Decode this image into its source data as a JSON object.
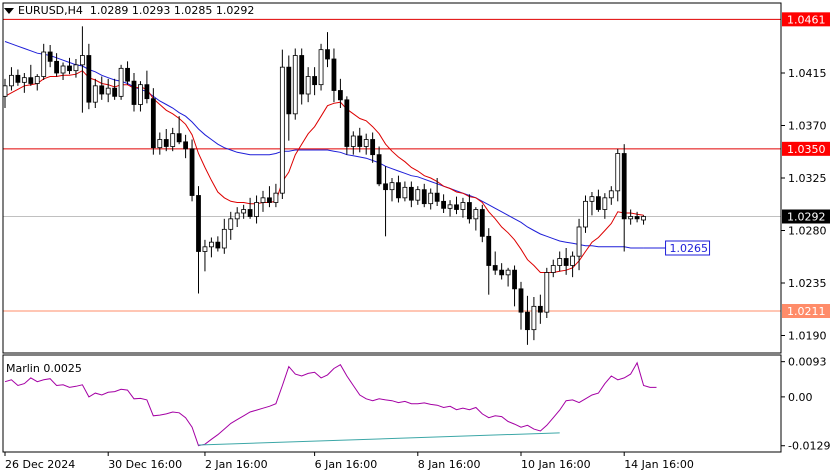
{
  "header": {
    "menu_icon": "triangle-down-icon",
    "symbol_timeframe": "EURUSD,H4",
    "open": "1.0289",
    "high": "1.0293",
    "low": "1.0285",
    "close": "1.0292"
  },
  "indicator": {
    "name": "Marlin",
    "value": "0.0025"
  },
  "colors": {
    "bull": "#ffffff",
    "bear": "#000000",
    "wick": "#000000",
    "ma_fast": "#dd0000",
    "ma_slow": "#1e1ed8",
    "level_line": "#e00000",
    "level_label_bg": "#ff0000",
    "support_line": "#ff8c69",
    "support_label_bg": "#ff8c69",
    "marlin": "#a400a4",
    "marlin_trend": "#3ca7a7",
    "grid": "#c8c8c8",
    "axis": "#000000"
  },
  "chart_data": {
    "type": "candlestick",
    "symbol": "EURUSD",
    "timeframe": "H4",
    "price_axis_ticks": [
      "1.0415",
      "1.0370",
      "1.0325",
      "1.0280",
      "1.0235",
      "1.0190"
    ],
    "time_axis_ticks": [
      "26 Dec 2024",
      "30 Dec 16:00",
      "2 Jan 16:00",
      "6 Jan 16:00",
      "8 Jan 16:00",
      "10 Jan 16:00",
      "14 Jan 16:00"
    ],
    "levels": [
      {
        "price": 1.0461,
        "label": "1.0461",
        "style": "resistance"
      },
      {
        "price": 1.035,
        "label": "1.0350",
        "style": "resistance"
      },
      {
        "price": 1.0211,
        "label": "1.0211",
        "style": "support"
      }
    ],
    "current_price": {
      "price": 1.0292,
      "label": "1.0292"
    },
    "slow_ma_marker": {
      "price": 1.0265,
      "label": "1.0265"
    },
    "candles": [
      [
        1.0395,
        1.041,
        1.0385,
        1.0404
      ],
      [
        1.0404,
        1.042,
        1.04,
        1.0413
      ],
      [
        1.0413,
        1.0418,
        1.0404,
        1.0407
      ],
      [
        1.0407,
        1.0415,
        1.0398,
        1.0411
      ],
      [
        1.0411,
        1.0422,
        1.0404,
        1.0406
      ],
      [
        1.0406,
        1.0414,
        1.04,
        1.0412
      ],
      [
        1.0412,
        1.044,
        1.0409,
        1.0433
      ],
      [
        1.0433,
        1.0439,
        1.042,
        1.0425
      ],
      [
        1.0425,
        1.0432,
        1.0412,
        1.0415
      ],
      [
        1.0415,
        1.0424,
        1.0409,
        1.0421
      ],
      [
        1.0421,
        1.0428,
        1.0414,
        1.0417
      ],
      [
        1.0417,
        1.0427,
        1.0411,
        1.0422
      ],
      [
        1.0422,
        1.0455,
        1.0381,
        1.043
      ],
      [
        1.043,
        1.044,
        1.0384,
        1.039
      ],
      [
        1.039,
        1.041,
        1.0385,
        1.0404
      ],
      [
        1.0404,
        1.0412,
        1.0392,
        1.0397
      ],
      [
        1.0397,
        1.041,
        1.039,
        1.0402
      ],
      [
        1.0402,
        1.041,
        1.0392,
        1.0395
      ],
      [
        1.0395,
        1.0422,
        1.0392,
        1.0419
      ],
      [
        1.0419,
        1.0425,
        1.0405,
        1.0408
      ],
      [
        1.0408,
        1.0415,
        1.0382,
        1.0388
      ],
      [
        1.0388,
        1.0408,
        1.0382,
        1.0405
      ],
      [
        1.0405,
        1.0417,
        1.0389,
        1.0393
      ],
      [
        1.0393,
        1.0402,
        1.0345,
        1.0351
      ],
      [
        1.0351,
        1.0364,
        1.0345,
        1.0358
      ],
      [
        1.0358,
        1.0367,
        1.0348,
        1.0352
      ],
      [
        1.0352,
        1.0368,
        1.0348,
        1.0363
      ],
      [
        1.0363,
        1.0378,
        1.0354,
        1.0356
      ],
      [
        1.0356,
        1.0362,
        1.0342,
        1.035
      ],
      [
        1.035,
        1.0358,
        1.0305,
        1.031
      ],
      [
        1.031,
        1.0318,
        1.0226,
        1.0262
      ],
      [
        1.0262,
        1.0272,
        1.0245,
        1.0266
      ],
      [
        1.0266,
        1.0274,
        1.0257,
        1.027
      ],
      [
        1.027,
        1.0275,
        1.0262,
        1.0265
      ],
      [
        1.0265,
        1.029,
        1.026,
        1.0281
      ],
      [
        1.0281,
        1.0296,
        1.0272,
        1.029
      ],
      [
        1.029,
        1.03,
        1.0283,
        1.0295
      ],
      [
        1.0295,
        1.0302,
        1.029,
        1.0298
      ],
      [
        1.0298,
        1.0308,
        1.029,
        1.0292
      ],
      [
        1.0292,
        1.031,
        1.0286,
        1.0304
      ],
      [
        1.0304,
        1.0314,
        1.0296,
        1.0308
      ],
      [
        1.0308,
        1.0318,
        1.03,
        1.0304
      ],
      [
        1.0304,
        1.032,
        1.03,
        1.0312
      ],
      [
        1.0312,
        1.0435,
        1.0307,
        1.042
      ],
      [
        1.042,
        1.043,
        1.0357,
        1.038
      ],
      [
        1.038,
        1.0436,
        1.0375,
        1.043
      ],
      [
        1.043,
        1.0436,
        1.0388,
        1.0397
      ],
      [
        1.0397,
        1.042,
        1.039,
        1.0412
      ],
      [
        1.0412,
        1.042,
        1.0396,
        1.0405
      ],
      [
        1.0405,
        1.044,
        1.04,
        1.0435
      ],
      [
        1.0435,
        1.045,
        1.042,
        1.0427
      ],
      [
        1.0427,
        1.0436,
        1.039,
        1.04
      ],
      [
        1.04,
        1.041,
        1.0385,
        1.0392
      ],
      [
        1.0392,
        1.0395,
        1.0345,
        1.0352
      ],
      [
        1.0352,
        1.0365,
        1.0345,
        1.0361
      ],
      [
        1.0361,
        1.0368,
        1.0347,
        1.0352
      ],
      [
        1.0352,
        1.0363,
        1.0345,
        1.0358
      ],
      [
        1.0358,
        1.0364,
        1.0338,
        1.0345
      ],
      [
        1.0345,
        1.0352,
        1.0318,
        1.032
      ],
      [
        1.032,
        1.0335,
        1.0275,
        1.0315
      ],
      [
        1.0315,
        1.0325,
        1.0305,
        1.0321
      ],
      [
        1.0321,
        1.0327,
        1.0304,
        1.0308
      ],
      [
        1.0308,
        1.0322,
        1.0305,
        1.0317
      ],
      [
        1.0317,
        1.0322,
        1.03,
        1.0306
      ],
      [
        1.0306,
        1.0318,
        1.0302,
        1.0315
      ],
      [
        1.0315,
        1.032,
        1.03,
        1.0303
      ],
      [
        1.0303,
        1.0316,
        1.0298,
        1.0312
      ],
      [
        1.0312,
        1.0325,
        1.0301,
        1.0305
      ],
      [
        1.0305,
        1.0311,
        1.0295,
        1.0299
      ],
      [
        1.0299,
        1.0306,
        1.0292,
        1.0302
      ],
      [
        1.0302,
        1.0309,
        1.0294,
        1.0298
      ],
      [
        1.0298,
        1.0308,
        1.0291,
        1.0304
      ],
      [
        1.0304,
        1.0311,
        1.0286,
        1.029
      ],
      [
        1.029,
        1.03,
        1.028,
        1.0298
      ],
      [
        1.0298,
        1.0302,
        1.027,
        1.0275
      ],
      [
        1.0275,
        1.0282,
        1.0225,
        1.025
      ],
      [
        1.025,
        1.0262,
        1.0242,
        1.0246
      ],
      [
        1.0246,
        1.0252,
        1.0238,
        1.0242
      ],
      [
        1.0242,
        1.0248,
        1.0232,
        1.0246
      ],
      [
        1.0246,
        1.025,
        1.0215,
        1.023
      ],
      [
        1.023,
        1.0236,
        1.0195,
        1.021
      ],
      [
        1.021,
        1.0224,
        1.0182,
        1.0195
      ],
      [
        1.0195,
        1.0223,
        1.0186,
        1.0215
      ],
      [
        1.0215,
        1.0225,
        1.02,
        1.021
      ],
      [
        1.021,
        1.0248,
        1.0205,
        1.0244
      ],
      [
        1.0244,
        1.0255,
        1.024,
        1.025
      ],
      [
        1.025,
        1.0262,
        1.0245,
        1.0256
      ],
      [
        1.0256,
        1.0265,
        1.0242,
        1.025
      ],
      [
        1.025,
        1.0262,
        1.024,
        1.0258
      ],
      [
        1.0258,
        1.029,
        1.0246,
        1.0283
      ],
      [
        1.0283,
        1.031,
        1.0278,
        1.0305
      ],
      [
        1.0305,
        1.0313,
        1.0293,
        1.0309
      ],
      [
        1.0309,
        1.0315,
        1.0296,
        1.0298
      ],
      [
        1.0298,
        1.0312,
        1.029,
        1.0308
      ],
      [
        1.0308,
        1.0318,
        1.0302,
        1.0314
      ],
      [
        1.0314,
        1.035,
        1.0305,
        1.0346
      ],
      [
        1.0346,
        1.0354,
        1.0262,
        1.029
      ],
      [
        1.029,
        1.0298,
        1.0285,
        1.0292
      ],
      [
        1.0292,
        1.0296,
        1.0287,
        1.029
      ],
      [
        1.0289,
        1.0293,
        1.0285,
        1.0292
      ]
    ],
    "ma_fast": [
      1.0395,
      1.0398,
      1.0401,
      1.0404,
      1.0405,
      1.0406,
      1.041,
      1.0412,
      1.0412,
      1.0413,
      1.0413,
      1.0414,
      1.0417,
      1.0411,
      1.0409,
      1.0406,
      1.0405,
      1.0403,
      1.0405,
      1.0405,
      1.0402,
      1.0403,
      1.0401,
      1.0393,
      1.0388,
      1.0383,
      1.038,
      1.0376,
      1.0371,
      1.0362,
      1.0346,
      1.0334,
      1.0323,
      1.0313,
      1.0308,
      1.0305,
      1.0304,
      1.0304,
      1.0303,
      1.0303,
      1.0304,
      1.0304,
      1.0305,
      1.0322,
      1.033,
      1.0345,
      1.0354,
      1.0363,
      1.0369,
      1.0378,
      1.0387,
      1.0389,
      1.039,
      1.0384,
      1.038,
      1.0376,
      1.0374,
      1.0369,
      1.0363,
      1.0354,
      1.0348,
      1.0343,
      1.0339,
      1.0334,
      1.0331,
      1.0327,
      1.0325,
      1.0322,
      1.0318,
      1.0316,
      1.0313,
      1.0312,
      1.0309,
      1.0308,
      1.0304,
      1.0296,
      1.029,
      1.0283,
      1.0278,
      1.0272,
      1.0264,
      1.0255,
      1.025,
      1.0244,
      1.0244,
      1.0244,
      1.0245,
      1.0246,
      1.0248,
      1.0254,
      1.0262,
      1.027,
      1.0274,
      1.028,
      1.0286,
      1.0296,
      1.0295,
      1.0295,
      1.0294,
      1.0293
    ],
    "ma_slow": [
      1.0442,
      1.044,
      1.0438,
      1.0436,
      1.0434,
      1.0432,
      1.0431,
      1.043,
      1.0428,
      1.0426,
      1.0424,
      1.0422,
      1.0421,
      1.0418,
      1.0416,
      1.0413,
      1.0411,
      1.0409,
      1.0408,
      1.0406,
      1.0403,
      1.0401,
      1.0399,
      1.0395,
      1.0391,
      1.0388,
      1.0385,
      1.0381,
      1.0378,
      1.0373,
      1.0367,
      1.0362,
      1.0358,
      1.0354,
      1.0351,
      1.0349,
      1.0347,
      1.0346,
      1.0345,
      1.0345,
      1.0345,
      1.0345,
      1.0346,
      1.0348,
      1.0348,
      1.0349,
      1.0349,
      1.0349,
      1.0349,
      1.0349,
      1.0349,
      1.0348,
      1.0347,
      1.0345,
      1.0344,
      1.0343,
      1.0342,
      1.034,
      1.0338,
      1.0335,
      1.0333,
      1.0331,
      1.0329,
      1.0327,
      1.0326,
      1.0324,
      1.0322,
      1.032,
      1.0318,
      1.0316,
      1.0314,
      1.0312,
      1.031,
      1.0308,
      1.0305,
      1.0302,
      1.0299,
      1.0296,
      1.0293,
      1.029,
      1.0287,
      1.0283,
      1.028,
      1.0277,
      1.0275,
      1.0273,
      1.0271,
      1.027,
      1.0269,
      1.0268,
      1.0267,
      1.0267,
      1.0266,
      1.0266,
      1.0266,
      1.0266,
      1.0266,
      1.0265,
      1.0265,
      1.0265
    ],
    "marlin": {
      "axis_ticks": [
        "0.0093",
        "0.00",
        "-0.0129"
      ],
      "ylim": [
        -0.0135,
        0.01
      ],
      "values": [
        0.004,
        0.0045,
        0.003,
        0.0035,
        0.005,
        0.004,
        0.0045,
        0.0048,
        0.003,
        0.0032,
        0.0025,
        0.0028,
        0.0032,
        0.0,
        0.001,
        0.0005,
        0.0012,
        0.0014,
        0.002,
        0.0018,
        -0.0005,
        -0.0004,
        -0.0008,
        -0.005,
        -0.0048,
        -0.0045,
        -0.004,
        -0.0042,
        -0.0055,
        -0.008,
        -0.0129,
        -0.0125,
        -0.0112,
        -0.01,
        -0.0085,
        -0.007,
        -0.006,
        -0.005,
        -0.004,
        -0.0035,
        -0.003,
        -0.0025,
        -0.0018,
        0.003,
        0.008,
        0.006,
        0.0055,
        0.0062,
        0.0065,
        0.005,
        0.0058,
        0.0075,
        0.0085,
        0.0055,
        0.003,
        0.0005,
        -0.0005,
        -0.001,
        -0.0005,
        -0.0008,
        -0.001,
        -0.0015,
        -0.0012,
        -0.0018,
        -0.0018,
        -0.0016,
        -0.002,
        -0.0022,
        -0.0028,
        -0.0025,
        -0.0034,
        -0.003,
        -0.0034,
        -0.0028,
        -0.0045,
        -0.0055,
        -0.005,
        -0.0052,
        -0.0065,
        -0.0072,
        -0.008,
        -0.0075,
        -0.0085,
        -0.009,
        -0.0075,
        -0.0055,
        -0.0035,
        -0.001,
        -0.0008,
        -0.0015,
        -0.0005,
        0.0005,
        0.001,
        0.0035,
        0.0055,
        0.0045,
        0.005,
        0.006,
        0.009,
        0.003,
        0.0025,
        0.0025
      ],
      "trend_start": {
        "index": 30,
        "value": -0.0127
      },
      "trend_end": {
        "index": 86,
        "value": -0.0095
      }
    }
  }
}
